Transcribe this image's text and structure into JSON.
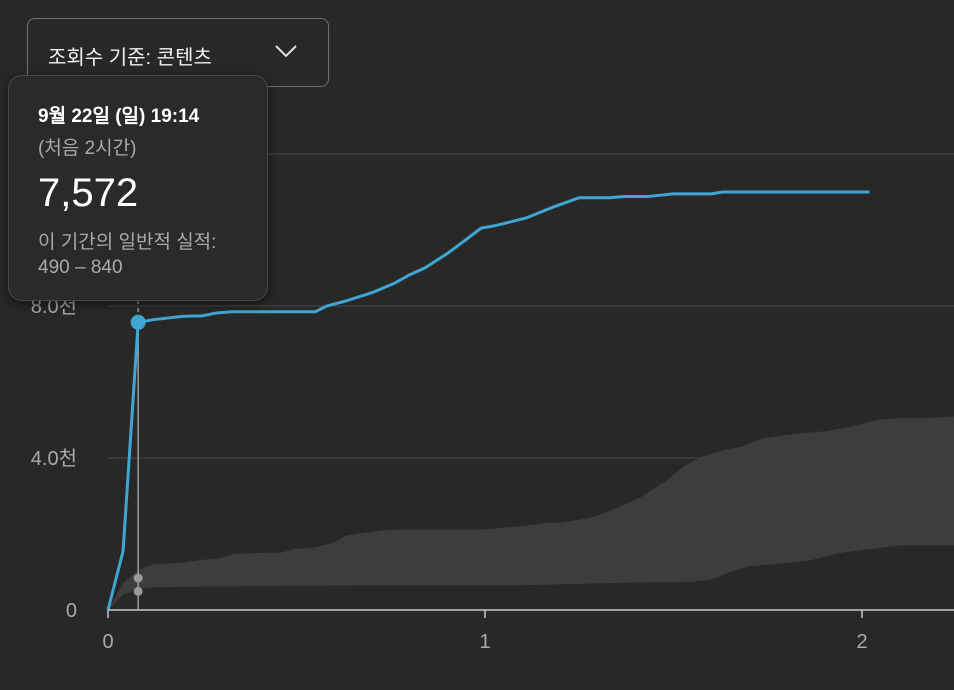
{
  "dropdown": {
    "label": "조회수 기준: 콘텐츠",
    "icon": "chevron-down-icon"
  },
  "tooltip": {
    "date": "9월 22일 (일) 19:14",
    "period": "(처음 2시간)",
    "value": "7,572",
    "range_label": "이 기간의 일반적 실적:",
    "range": "490 – 840"
  },
  "colors": {
    "line": "#3ea6d2",
    "band": "#3d3d3d",
    "background": "#282828",
    "grid": "#474747",
    "axis": "#aaaaaa"
  },
  "chart_data": {
    "type": "line",
    "xlim": [
      0,
      2.25
    ],
    "ylim": [
      0,
      12000
    ],
    "x_ticks": [
      0,
      1,
      2
    ],
    "x_tick_labels": [
      "0",
      "1",
      "2"
    ],
    "y_ticks": [
      0,
      4000,
      8000,
      12000
    ],
    "y_tick_labels": [
      "0",
      "4.0천",
      "8.0천",
      ""
    ],
    "grid": true,
    "series": [
      {
        "kind": "line",
        "points": [
          [
            0,
            0
          ],
          [
            0.04,
            1550
          ],
          [
            0.08,
            7572
          ],
          [
            0.12,
            7640
          ],
          [
            0.2,
            7730
          ],
          [
            0.25,
            7740
          ],
          [
            0.29,
            7820
          ],
          [
            0.33,
            7850
          ],
          [
            0.55,
            7850
          ],
          [
            0.58,
            8000
          ],
          [
            0.63,
            8130
          ],
          [
            0.7,
            8350
          ],
          [
            0.76,
            8600
          ],
          [
            0.8,
            8820
          ],
          [
            0.84,
            9000
          ],
          [
            0.9,
            9380
          ],
          [
            0.95,
            9750
          ],
          [
            0.99,
            10050
          ],
          [
            1.03,
            10120
          ],
          [
            1.11,
            10320
          ],
          [
            1.18,
            10600
          ],
          [
            1.25,
            10850
          ],
          [
            1.33,
            10850
          ],
          [
            1.37,
            10880
          ],
          [
            1.43,
            10880
          ],
          [
            1.5,
            10950
          ],
          [
            1.6,
            10950
          ],
          [
            1.63,
            11000
          ],
          [
            2.02,
            11000
          ]
        ]
      },
      {
        "kind": "band",
        "upper": [
          [
            0,
            0
          ],
          [
            0.04,
            700
          ],
          [
            0.08,
            1050
          ],
          [
            0.12,
            1200
          ],
          [
            0.2,
            1250
          ],
          [
            0.25,
            1320
          ],
          [
            0.3,
            1370
          ],
          [
            0.33,
            1470
          ],
          [
            0.4,
            1500
          ],
          [
            0.46,
            1510
          ],
          [
            0.49,
            1600
          ],
          [
            0.55,
            1650
          ],
          [
            0.6,
            1770
          ],
          [
            0.63,
            1950
          ],
          [
            0.66,
            2000
          ],
          [
            0.73,
            2100
          ],
          [
            0.8,
            2120
          ],
          [
            1.0,
            2120
          ],
          [
            1.09,
            2200
          ],
          [
            1.17,
            2300
          ],
          [
            1.2,
            2300
          ],
          [
            1.28,
            2420
          ],
          [
            1.33,
            2600
          ],
          [
            1.41,
            2950
          ],
          [
            1.48,
            3400
          ],
          [
            1.53,
            3800
          ],
          [
            1.58,
            4050
          ],
          [
            1.63,
            4200
          ],
          [
            1.68,
            4300
          ],
          [
            1.73,
            4500
          ],
          [
            1.78,
            4580
          ],
          [
            1.84,
            4650
          ],
          [
            1.9,
            4700
          ],
          [
            1.96,
            4800
          ],
          [
            2.04,
            5000
          ],
          [
            2.1,
            5050
          ],
          [
            2.18,
            5050
          ],
          [
            2.25,
            5100
          ]
        ],
        "lower": [
          [
            0,
            0
          ],
          [
            0.04,
            400
          ],
          [
            0.08,
            560
          ],
          [
            0.12,
            600
          ],
          [
            0.2,
            610
          ],
          [
            0.25,
            620
          ],
          [
            0.33,
            620
          ],
          [
            0.5,
            640
          ],
          [
            0.8,
            650
          ],
          [
            1.1,
            650
          ],
          [
            1.3,
            700
          ],
          [
            1.43,
            730
          ],
          [
            1.55,
            740
          ],
          [
            1.6,
            800
          ],
          [
            1.65,
            1000
          ],
          [
            1.7,
            1150
          ],
          [
            1.76,
            1200
          ],
          [
            1.86,
            1300
          ],
          [
            1.94,
            1500
          ],
          [
            2.02,
            1600
          ],
          [
            2.1,
            1700
          ],
          [
            2.25,
            1700
          ]
        ]
      }
    ],
    "marker_x": 0.08,
    "marker_y": 7572,
    "marker_range": [
      490,
      840
    ]
  }
}
